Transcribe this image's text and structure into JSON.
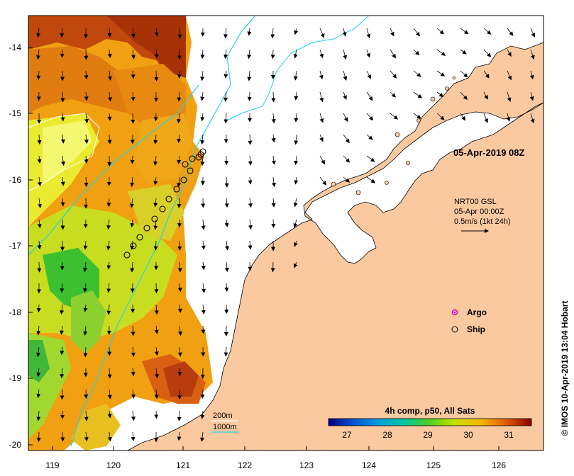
{
  "map": {
    "timestamp": "05-Apr-2019 08Z",
    "product": {
      "line1": "NRT00 GSL",
      "line2": "05-Apr 00:00Z",
      "line3": "0.5m/s (1kt 24h)"
    },
    "legend": {
      "argo": "Argo",
      "ship": "Ship"
    },
    "isobaths": {
      "shallow": "200m",
      "deep": "1000m"
    },
    "colorbar": {
      "title": "4h comp, p50, All Sats",
      "ticks": [
        "27",
        "28",
        "29",
        "30",
        "31"
      ]
    },
    "credit": "© IMOS 10-Apr-2019 13:04 Hobart",
    "lon_ticks": [
      "119",
      "120",
      "121",
      "122",
      "123",
      "124",
      "125",
      "126"
    ],
    "lat_ticks": [
      "-14",
      "-15",
      "-16",
      "-17",
      "-18",
      "-19",
      "-20"
    ],
    "colors": {
      "land": "#fbc9a0",
      "isobath200": "#ffffff",
      "isobath1000": "#22d3e6",
      "ship": "#000000",
      "argo": "#d400d4"
    }
  }
}
